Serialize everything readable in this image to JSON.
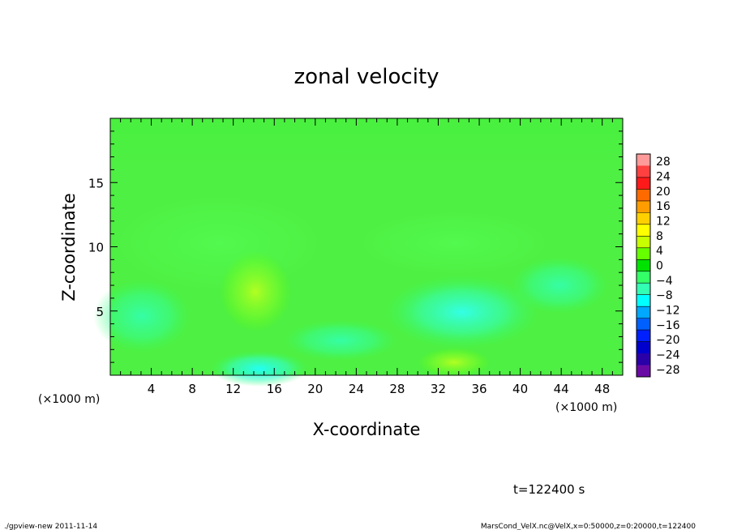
{
  "chart_data": {
    "type": "heatmap",
    "title": "zonal velocity",
    "xlabel": "X-coordinate",
    "ylabel": "Z-coordinate",
    "x_unit": "(×1000 m)",
    "y_unit": "(×1000 m)",
    "xlim": [
      0,
      50
    ],
    "ylim": [
      0,
      20
    ],
    "x_ticks": [
      4,
      8,
      12,
      16,
      20,
      24,
      28,
      32,
      36,
      40,
      44,
      48
    ],
    "y_ticks": [
      5,
      10,
      15
    ],
    "time_label": "t=122400 s",
    "colorbar": {
      "labels": [
        28,
        24,
        20,
        16,
        12,
        8,
        4,
        0,
        -4,
        -8,
        -12,
        -16,
        -20,
        -24,
        -28
      ],
      "colors": [
        "#ff9a9a",
        "#ff4040",
        "#ff1a1a",
        "#ff6a00",
        "#ff9d00",
        "#ffd000",
        "#ffff00",
        "#c8ff00",
        "#66ff00",
        "#00e200",
        "#33ff66",
        "#33ffb3",
        "#00ffff",
        "#00a8ff",
        "#0060ff",
        "#0020ff",
        "#0000cc",
        "#2a00a8",
        "#6a0aa5"
      ]
    },
    "field_features": [
      {
        "x": 3,
        "z": 4.5,
        "u": -6
      },
      {
        "x": 14.5,
        "z": 0.4,
        "u": -11
      },
      {
        "x": 14.5,
        "z": 6,
        "u": 4
      },
      {
        "x": 34,
        "z": 5,
        "u": -10
      },
      {
        "x": 33,
        "z": 1,
        "u": 5
      },
      {
        "x": 43,
        "z": 7,
        "u": -4
      },
      {
        "x": 25,
        "z": 9.5,
        "u": 2
      },
      {
        "x": 8,
        "z": 12,
        "u": 0
      },
      {
        "x": 20,
        "z": 17,
        "u": 0
      }
    ]
  },
  "footer": {
    "left": "./gpview-new  2011-11-14",
    "right": "MarsCond_VelX.nc@VelX,x=0:50000,z=0:20000,t=122400"
  }
}
